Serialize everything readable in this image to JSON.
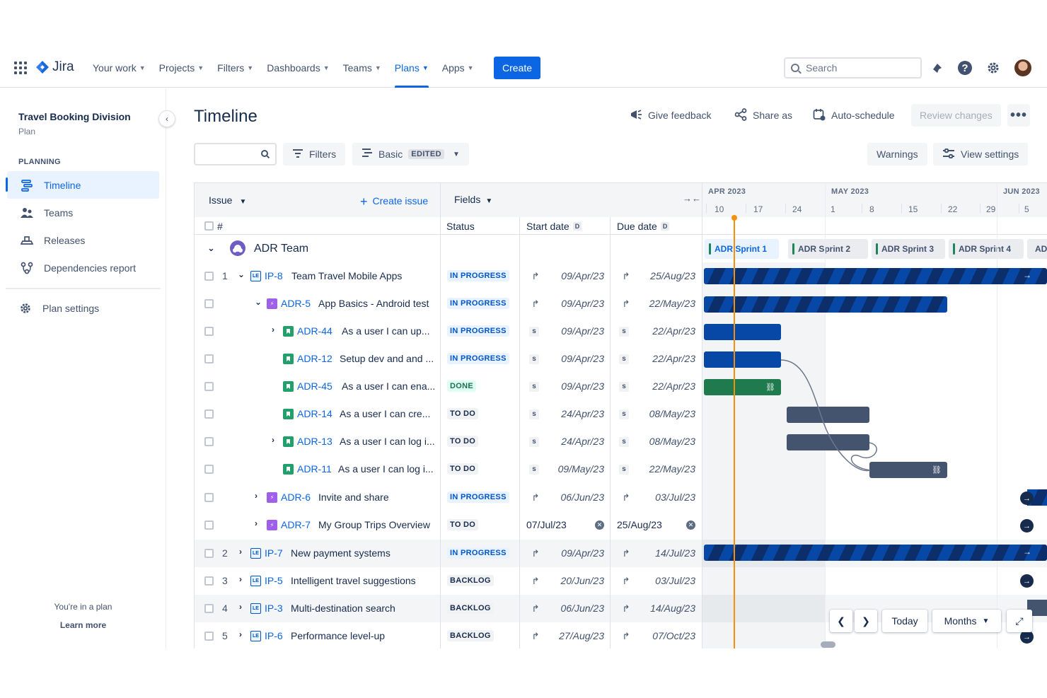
{
  "nav": {
    "logo_text": "Jira",
    "items": [
      {
        "label": "Your work"
      },
      {
        "label": "Projects"
      },
      {
        "label": "Filters"
      },
      {
        "label": "Dashboards"
      },
      {
        "label": "Teams"
      },
      {
        "label": "Plans",
        "active": true
      },
      {
        "label": "Apps"
      }
    ],
    "create_label": "Create",
    "search_placeholder": "Search"
  },
  "sidebar": {
    "plan_name": "Travel Booking Division",
    "plan_type": "Plan",
    "section_label": "PLANNING",
    "items": [
      {
        "label": "Timeline",
        "icon": "timeline-icon",
        "active": true
      },
      {
        "label": "Teams",
        "icon": "teams-icon"
      },
      {
        "label": "Releases",
        "icon": "releases-icon"
      },
      {
        "label": "Dependencies report",
        "icon": "dependencies-icon"
      }
    ],
    "settings_label": "Plan settings",
    "footer_text": "You're in a plan",
    "footer_link": "Learn more"
  },
  "header": {
    "title": "Timeline",
    "give_feedback": "Give feedback",
    "share_as": "Share as",
    "auto_schedule": "Auto-schedule",
    "review_changes": "Review changes",
    "more": "•••"
  },
  "toolbar": {
    "filters": "Filters",
    "view_name": "Basic",
    "view_badge": "EDITED",
    "warnings": "Warnings",
    "view_settings": "View settings"
  },
  "table": {
    "issue_header": "Issue",
    "create_issue": "Create issue",
    "fields_header": "Fields",
    "col_num": "#",
    "col_status": "Status",
    "col_start": "Start date",
    "col_due": "Due date",
    "date_badge": "D",
    "team_name": "ADR Team"
  },
  "timeline": {
    "months": [
      "APR 2023",
      "MAY 2023",
      "JUN 2023"
    ],
    "days": [
      "10",
      "17",
      "24",
      "1",
      "8",
      "15",
      "22",
      "29",
      "5"
    ],
    "sprints": [
      "ADR Sprint 1",
      "ADR Sprint 2",
      "ADR Sprint 3",
      "ADR Sprint 4",
      "AD"
    ],
    "today_btn": "Today",
    "scale_btn": "Months"
  },
  "rows": [
    {
      "num": "1",
      "key": "IP-8",
      "type": "LE",
      "summary": "Team Travel Mobile Apps",
      "status": "IN PROGRESS",
      "start": "09/Apr/23",
      "due": "25/Aug/23"
    },
    {
      "num": "",
      "key": "ADR-5",
      "type": "epic",
      "summary": "App Basics - Android test",
      "status": "IN PROGRESS",
      "start": "09/Apr/23",
      "due": "22/May/23"
    },
    {
      "num": "",
      "key": "ADR-44",
      "type": "story",
      "summary": "As a user I can up...",
      "status": "IN PROGRESS",
      "start": "09/Apr/23",
      "due": "22/Apr/23"
    },
    {
      "num": "",
      "key": "ADR-12",
      "type": "story",
      "summary": "Setup dev and and ...",
      "status": "IN PROGRESS",
      "start": "09/Apr/23",
      "due": "22/Apr/23"
    },
    {
      "num": "",
      "key": "ADR-45",
      "type": "story",
      "summary": "As a user I can ena...",
      "status": "DONE",
      "start": "09/Apr/23",
      "due": "22/Apr/23"
    },
    {
      "num": "",
      "key": "ADR-14",
      "type": "story",
      "summary": "As a user I can cre...",
      "status": "TO DO",
      "start": "24/Apr/23",
      "due": "08/May/23"
    },
    {
      "num": "",
      "key": "ADR-13",
      "type": "story",
      "summary": "As a user I can log i...",
      "status": "TO DO",
      "start": "24/Apr/23",
      "due": "08/May/23"
    },
    {
      "num": "",
      "key": "ADR-11",
      "type": "story",
      "summary": "As a user I can log i...",
      "status": "TO DO",
      "start": "09/May/23",
      "due": "22/May/23"
    },
    {
      "num": "",
      "key": "ADR-6",
      "type": "epic",
      "summary": "Invite and share",
      "status": "IN PROGRESS",
      "start": "06/Jun/23",
      "due": "03/Jul/23"
    },
    {
      "num": "",
      "key": "ADR-7",
      "type": "epic",
      "summary": "My Group Trips Overview",
      "status": "TO DO",
      "start": "07/Jul/23",
      "due": "25/Aug/23"
    },
    {
      "num": "2",
      "key": "IP-7",
      "type": "LE",
      "summary": "New payment systems",
      "status": "IN PROGRESS",
      "start": "09/Apr/23",
      "due": "14/Jul/23"
    },
    {
      "num": "3",
      "key": "IP-5",
      "type": "LE",
      "summary": "Intelligent travel suggestions",
      "status": "BACKLOG",
      "start": "20/Jun/23",
      "due": "03/Jul/23"
    },
    {
      "num": "4",
      "key": "IP-3",
      "type": "LE",
      "summary": "Multi-destination search",
      "status": "BACKLOG",
      "start": "06/Jun/23",
      "due": "14/Aug/23"
    },
    {
      "num": "5",
      "key": "IP-6",
      "type": "LE",
      "summary": "Performance level-up",
      "status": "BACKLOG",
      "start": "27/Aug/23",
      "due": "07/Oct/23"
    }
  ],
  "colors": {
    "accent": "#0c66e4",
    "today_line": "#f79009",
    "bar_blue": "#0747a6",
    "bar_green": "#1f7a4d",
    "bar_grey": "#44546f"
  }
}
